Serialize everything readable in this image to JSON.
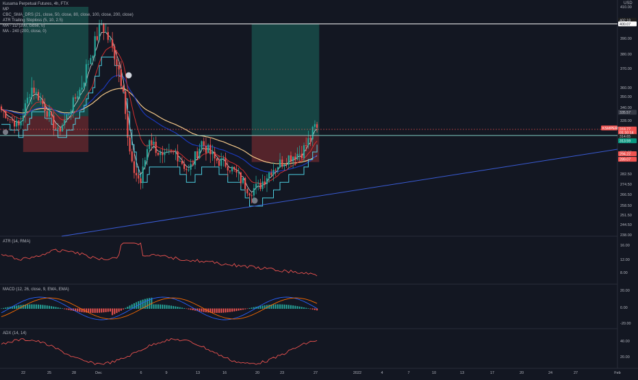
{
  "legend": {
    "title": "Kusama Perpetual Futures, 4h, FTX",
    "items": [
      "MP",
      "CBC_SMA_DRS (21, close, 50, close, 80, close, 100, close, 200, close)",
      "ATR Trailing Stoploss (5, 10, 2.5)",
      "MA - 1D (200, close, 0)",
      "MA - 240 (200, close, 0)"
    ]
  },
  "currency": "USD",
  "price_axis": {
    "ticks": [
      "410.00",
      "400.00",
      "390.00",
      "380.00",
      "370.00",
      "360.00",
      "350.00",
      "340.00",
      "328.00",
      "318.00",
      "300.00",
      "282.50",
      "274.50",
      "266.50",
      "258.50",
      "251.50",
      "244.50",
      "238.00"
    ],
    "badges": [
      {
        "label": "402.18",
        "color": "#1e1e1e",
        "text": "#d1d4dc",
        "price": 402.18
      },
      {
        "label": "400.07",
        "color": "#ffffff",
        "text": "#131722",
        "price": 400.07
      },
      {
        "label": "335.57",
        "color": "#363a45",
        "text": "#d1d4dc",
        "price": 335.57
      },
      {
        "label": "KSMPERP",
        "color": "#ef5350",
        "text": "#ffffff",
        "price": 320.2
      },
      {
        "label": "318.77",
        "color": "#ef5350",
        "text": "#ffffff",
        "price": 319.2
      },
      {
        "label": "01:10:14",
        "color": "#ef5350",
        "text": "#ffffff",
        "price": 316.0
      },
      {
        "label": "314.65",
        "color": "#1e1e1e",
        "text": "#d1d4dc",
        "price": 312.8
      },
      {
        "label": "313.59",
        "color": "#089981",
        "text": "#ffffff",
        "price": 309.2
      },
      {
        "label": "294.22",
        "color": "#ef5350",
        "text": "#ffffff",
        "price": 298.6
      },
      {
        "label": "289.07",
        "color": "#ef5350",
        "text": "#ffffff",
        "price": 294.2
      }
    ]
  },
  "time_axis": [
    "22",
    "25",
    "28",
    "Dec",
    "6",
    "9",
    "13",
    "16",
    "20",
    "23",
    "27",
    "2022",
    "4",
    "7",
    "10",
    "13",
    "17",
    "20",
    "24",
    "27",
    "Feb"
  ],
  "panes": {
    "atr": {
      "title": "ATR (14, RMA)",
      "ticks": [
        "16.00",
        "12.00",
        "8.00"
      ]
    },
    "macd": {
      "title": "MACD (12, 26, close, 9, EMA, EMA)",
      "ticks": [
        "20.00",
        "0.00",
        "-20.00"
      ]
    },
    "adx": {
      "title": "ADX (14, 14)",
      "ticks": [
        "40.00",
        "20.00"
      ]
    }
  },
  "chart_data": {
    "type": "candlestick",
    "symbol": "KSMPERP",
    "last_price": 318.77,
    "horizontal_lines": [
      {
        "price": 400.07,
        "color": "#ffffff"
      },
      {
        "price": 313.59,
        "color": "#80cbc4"
      }
    ],
    "position_tools": [
      {
        "side": "long",
        "entry": 332,
        "target": 410,
        "stop": 300,
        "from_bar": 10,
        "to_bar": 40
      },
      {
        "side": "long",
        "entry": 314,
        "target": 400,
        "stop": 292,
        "from_bar": 115,
        "to_bar": 146
      }
    ]
  },
  "colors": {
    "bull": "#26a69a",
    "bear": "#ef5350",
    "ma_1d": "#f5c98a",
    "ma_240": "#1c39bb",
    "sma_21": "#d32f2f",
    "trailing_stop": "#4dd0e1",
    "cbc_mid": "#e0e0e0",
    "trendline": "#3a5cd6"
  }
}
